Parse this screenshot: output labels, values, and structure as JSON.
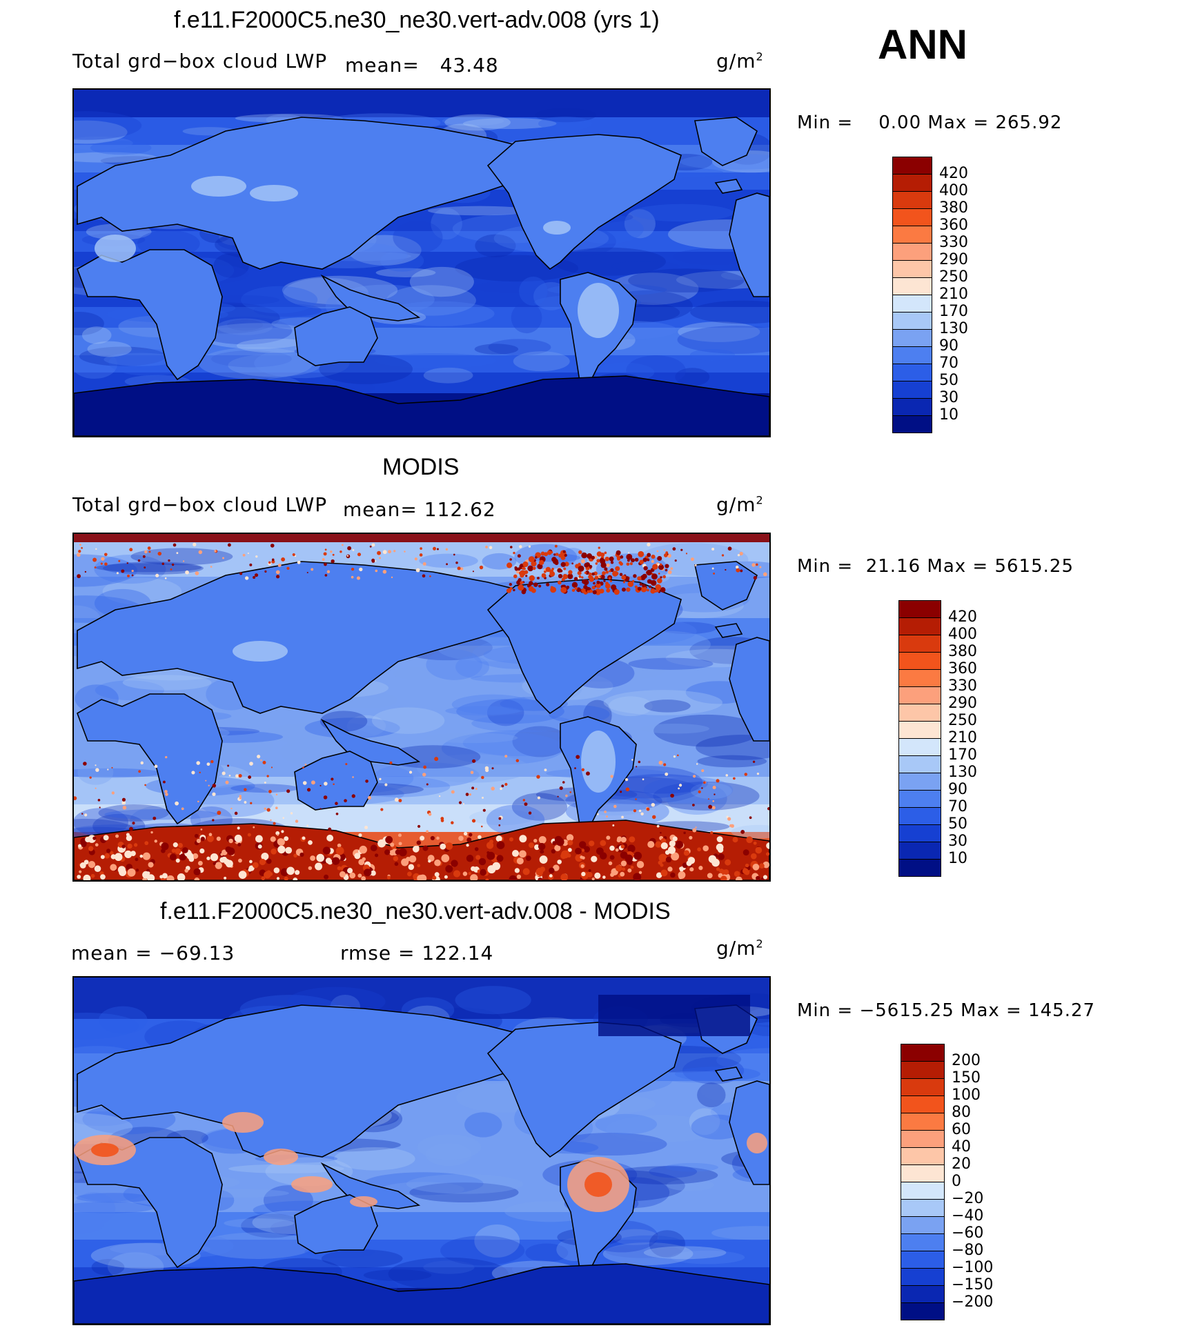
{
  "header": {
    "season": "ANN"
  },
  "panels": [
    {
      "title": "f.e11.F2000C5.ne30_ne30.vert-adv.008 (yrs 1)",
      "variable": "Total grd−box cloud LWP",
      "stat1": "mean=   43.48",
      "stat2": "",
      "units_base": "g/m",
      "units_exp": "2",
      "minmax": "Min =    0.00 Max = 265.92",
      "type": "model",
      "colorbar": {
        "labels": [
          "420",
          "400",
          "380",
          "360",
          "330",
          "290",
          "250",
          "210",
          "170",
          "130",
          "90",
          "70",
          "50",
          "30",
          "10"
        ]
      }
    },
    {
      "title": "MODIS",
      "variable": "Total grd−box cloud LWP",
      "stat1": "mean= 112.62",
      "stat2": "",
      "units_base": "g/m",
      "units_exp": "2",
      "minmax": "Min =  21.16 Max = 5615.25",
      "type": "obs",
      "colorbar": {
        "labels": [
          "420",
          "400",
          "380",
          "360",
          "330",
          "290",
          "250",
          "210",
          "170",
          "130",
          "90",
          "70",
          "50",
          "30",
          "10"
        ]
      }
    },
    {
      "title": "f.e11.F2000C5.ne30_ne30.vert-adv.008 - MODIS",
      "variable": "",
      "stat1": "mean = −69.13",
      "stat2": "rmse = 122.14",
      "units_base": "g/m",
      "units_exp": "2",
      "minmax": "Min = −5615.25 Max = 145.27",
      "type": "diff",
      "colorbar": {
        "labels": [
          "200",
          "150",
          "100",
          "80",
          "60",
          "40",
          "20",
          "0",
          "−20",
          "−40",
          "−60",
          "−80",
          "−100",
          "−150",
          "−200"
        ]
      }
    }
  ],
  "colors": {
    "scale16": [
      "#8b0000",
      "#b51d04",
      "#d93a0e",
      "#f2541c",
      "#fb7a42",
      "#fca07c",
      "#fdc6a8",
      "#fde5d3",
      "#d3e6fb",
      "#a8c8f7",
      "#7aa2f2",
      "#4d7ff0",
      "#2c5ee7",
      "#1640d2",
      "#0a27b2",
      "#000f85"
    ],
    "map_land": "#5a85e8"
  }
}
